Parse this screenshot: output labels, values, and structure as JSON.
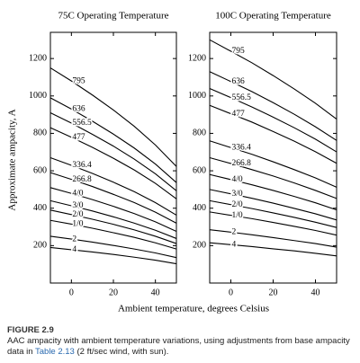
{
  "chart_data": [
    {
      "type": "line",
      "title": "75C Operating Temperature",
      "color": "#000000",
      "x": [
        -10,
        0,
        10,
        20,
        30,
        40,
        50
      ],
      "xlim": [
        -10,
        50
      ],
      "xticks": [
        0,
        20,
        40
      ],
      "ylim": [
        0,
        1340
      ],
      "yticks": [
        200,
        400,
        600,
        800,
        1000,
        1200
      ],
      "series": [
        {
          "name": "795",
          "values": [
            1150,
            1080,
            1005,
            925,
            837,
            738,
            623
          ]
        },
        {
          "name": "636",
          "values": [
            990,
            930,
            865,
            796,
            721,
            636,
            537
          ]
        },
        {
          "name": "556.5",
          "values": [
            910,
            855,
            795,
            732,
            662,
            584,
            493
          ]
        },
        {
          "name": "477",
          "values": [
            830,
            779,
            725,
            667,
            604,
            533,
            450
          ]
        },
        {
          "name": "336.4",
          "values": [
            670,
            629,
            586,
            539,
            488,
            430,
            363
          ]
        },
        {
          "name": "266.8",
          "values": [
            590,
            554,
            516,
            474,
            430,
            379,
            320
          ]
        },
        {
          "name": "4/0",
          "values": [
            510,
            479,
            446,
            410,
            371,
            327,
            276
          ]
        },
        {
          "name": "3/0",
          "values": [
            440,
            413,
            385,
            354,
            320,
            282,
            238
          ]
        },
        {
          "name": "2/0",
          "values": [
            390,
            366,
            341,
            314,
            284,
            250,
            211
          ]
        },
        {
          "name": "1/0",
          "values": [
            335,
            315,
            293,
            269,
            244,
            215,
            182
          ]
        },
        {
          "name": "2",
          "values": [
            250,
            235,
            219,
            201,
            182,
            161,
            136
          ]
        },
        {
          "name": "4",
          "values": [
            190,
            178,
            166,
            153,
            138,
            122,
            103
          ]
        }
      ]
    },
    {
      "type": "line",
      "title": "100C Operating Temperature",
      "color": "#000000",
      "x": [
        -10,
        0,
        10,
        20,
        30,
        40,
        50
      ],
      "xlim": [
        -10,
        50
      ],
      "xticks": [
        0,
        20,
        40
      ],
      "ylim": [
        0,
        1340
      ],
      "yticks": [
        200,
        400,
        600,
        800,
        1000,
        1200
      ],
      "series": [
        {
          "name": "795",
          "values": [
            1300,
            1239,
            1177,
            1109,
            1037,
            961,
            876
          ]
        },
        {
          "name": "636",
          "values": [
            1130,
            1077,
            1023,
            964,
            902,
            835,
            762
          ]
        },
        {
          "name": "556.5",
          "values": [
            1040,
            991,
            941,
            887,
            830,
            769,
            701
          ]
        },
        {
          "name": "477",
          "values": [
            950,
            905,
            860,
            810,
            758,
            702,
            640
          ]
        },
        {
          "name": "336.4",
          "values": [
            760,
            724,
            688,
            648,
            606,
            562,
            512
          ]
        },
        {
          "name": "266.8",
          "values": [
            670,
            639,
            606,
            572,
            535,
            495,
            452
          ]
        },
        {
          "name": "4/0",
          "values": [
            580,
            553,
            525,
            495,
            463,
            429,
            391
          ]
        },
        {
          "name": "3/0",
          "values": [
            500,
            477,
            453,
            427,
            399,
            370,
            337
          ]
        },
        {
          "name": "2/0",
          "values": [
            440,
            419,
            398,
            375,
            351,
            325,
            297
          ]
        },
        {
          "name": "1/0",
          "values": [
            380,
            362,
            344,
            324,
            303,
            281,
            256
          ]
        },
        {
          "name": "2",
          "values": [
            285,
            272,
            258,
            243,
            227,
            211,
            192
          ]
        },
        {
          "name": "4",
          "values": [
            215,
            205,
            195,
            183,
            172,
            159,
            145
          ]
        }
      ]
    }
  ],
  "ylabel": "Approximate ampacity, A",
  "xlabel": "Ambient temperature, degrees Celsius",
  "caption": {
    "label": "FIGURE 2.9",
    "text": [
      "AAC ampacity with ambient temperature variations, using adjustments from base ampacity data in ",
      "Table 2.13",
      " (2 ft/sec wind, with sun)."
    ]
  }
}
